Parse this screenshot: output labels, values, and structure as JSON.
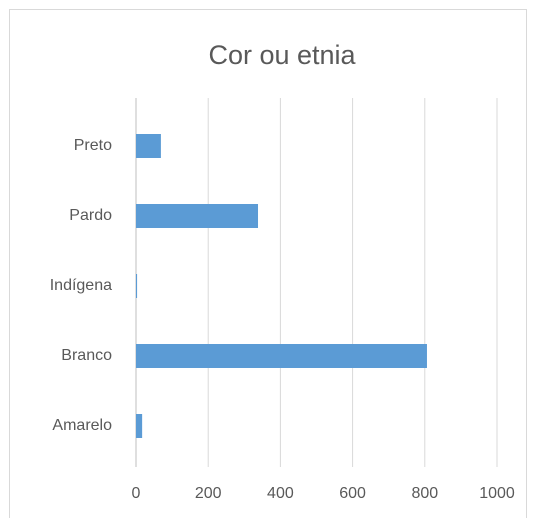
{
  "chart_data": {
    "type": "bar",
    "orientation": "horizontal",
    "title": "Cor ou etnia",
    "categories": [
      "Preto",
      "Pardo",
      "Indígena",
      "Branco",
      "Amarelo"
    ],
    "values": [
      69,
      338,
      3,
      806,
      17
    ],
    "color": "#5b9bd5",
    "xlim": [
      0,
      1000
    ],
    "xticks": [
      0,
      200,
      400,
      600,
      800,
      1000
    ],
    "grid": true
  }
}
